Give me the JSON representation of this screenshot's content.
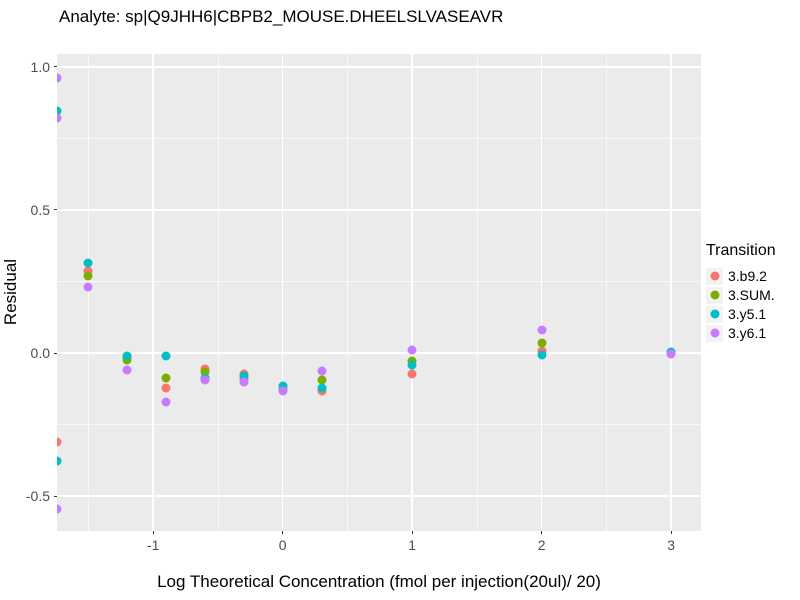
{
  "title": "Analyte: sp|Q9JHH6|CBPB2_MOUSE.DHEELSLVASEAVR",
  "chart_data": {
    "type": "scatter",
    "title": "Analyte: sp|Q9JHH6|CBPB2_MOUSE.DHEELSLVASEAVR",
    "xlabel": "Log Theoretical Concentration (fmol per injection(20ul)/ 20)",
    "ylabel": "Residual",
    "xlim": [
      -1.743,
      3.23
    ],
    "ylim": [
      -0.622,
      1.045
    ],
    "grid": true,
    "panel_bg": "#EBEBEB",
    "grid_color": "#FFFFFF",
    "x_ticks": [
      {
        "v": -1,
        "label": "-1"
      },
      {
        "v": 0,
        "label": "0"
      },
      {
        "v": 1,
        "label": "1"
      },
      {
        "v": 2,
        "label": "2"
      },
      {
        "v": 3,
        "label": "3"
      }
    ],
    "y_ticks": [
      {
        "v": -0.5,
        "label": "-0.5"
      },
      {
        "v": 0.0,
        "label": "0.0"
      },
      {
        "v": 0.5,
        "label": "0.5"
      },
      {
        "v": 1.0,
        "label": "1.0"
      }
    ],
    "x_minor": [
      -1.5,
      -0.5,
      0.5,
      1.5,
      2.5
    ],
    "y_minor": [
      -0.25,
      0.25,
      0.75
    ],
    "legend_title": "Transition",
    "legend_position": "right",
    "series": [
      {
        "name": "3.b9.2",
        "color": "#F8766D",
        "points": [
          [
            -1.743,
            -0.31
          ],
          [
            -1.5,
            0.285
          ],
          [
            -1.2,
            -0.018
          ],
          [
            -0.9,
            -0.123
          ],
          [
            -0.6,
            -0.055
          ],
          [
            -0.3,
            -0.072
          ],
          [
            0,
            -0.125
          ],
          [
            0.3,
            -0.134
          ],
          [
            1,
            -0.072
          ],
          [
            2,
            0.007
          ],
          [
            3,
            0.0
          ]
        ]
      },
      {
        "name": "3.SUM.",
        "color": "#7CAE00",
        "points": [
          [
            -1.5,
            0.27
          ],
          [
            -1.2,
            -0.025
          ],
          [
            -0.9,
            -0.088
          ],
          [
            -0.6,
            -0.066
          ],
          [
            -0.3,
            -0.09
          ],
          [
            0,
            -0.128
          ],
          [
            0.3,
            -0.096
          ],
          [
            1,
            -0.028
          ],
          [
            2,
            0.034
          ],
          [
            3,
            0.0
          ]
        ]
      },
      {
        "name": "3.y5.1",
        "color": "#00BFC4",
        "points": [
          [
            -1.743,
            0.845
          ],
          [
            -1.743,
            -0.378
          ],
          [
            -1.5,
            0.315
          ],
          [
            -1.2,
            -0.01
          ],
          [
            -0.9,
            -0.012
          ],
          [
            -0.6,
            -0.088
          ],
          [
            -0.3,
            -0.082
          ],
          [
            0,
            -0.117
          ],
          [
            0.3,
            -0.123
          ],
          [
            1,
            -0.043
          ],
          [
            2,
            -0.007
          ],
          [
            3,
            0.004
          ]
        ]
      },
      {
        "name": "3.y6.1",
        "color": "#C77CFF",
        "points": [
          [
            -1.743,
            0.96
          ],
          [
            -1.743,
            0.82
          ],
          [
            -1.743,
            -0.545
          ],
          [
            -1.5,
            0.23
          ],
          [
            -1.2,
            -0.06
          ],
          [
            -0.9,
            -0.17
          ],
          [
            -0.6,
            -0.095
          ],
          [
            -0.3,
            -0.102
          ],
          [
            0,
            -0.134
          ],
          [
            0.3,
            -0.064
          ],
          [
            1,
            0.011
          ],
          [
            2,
            0.082
          ],
          [
            3,
            -0.002
          ]
        ]
      }
    ]
  }
}
